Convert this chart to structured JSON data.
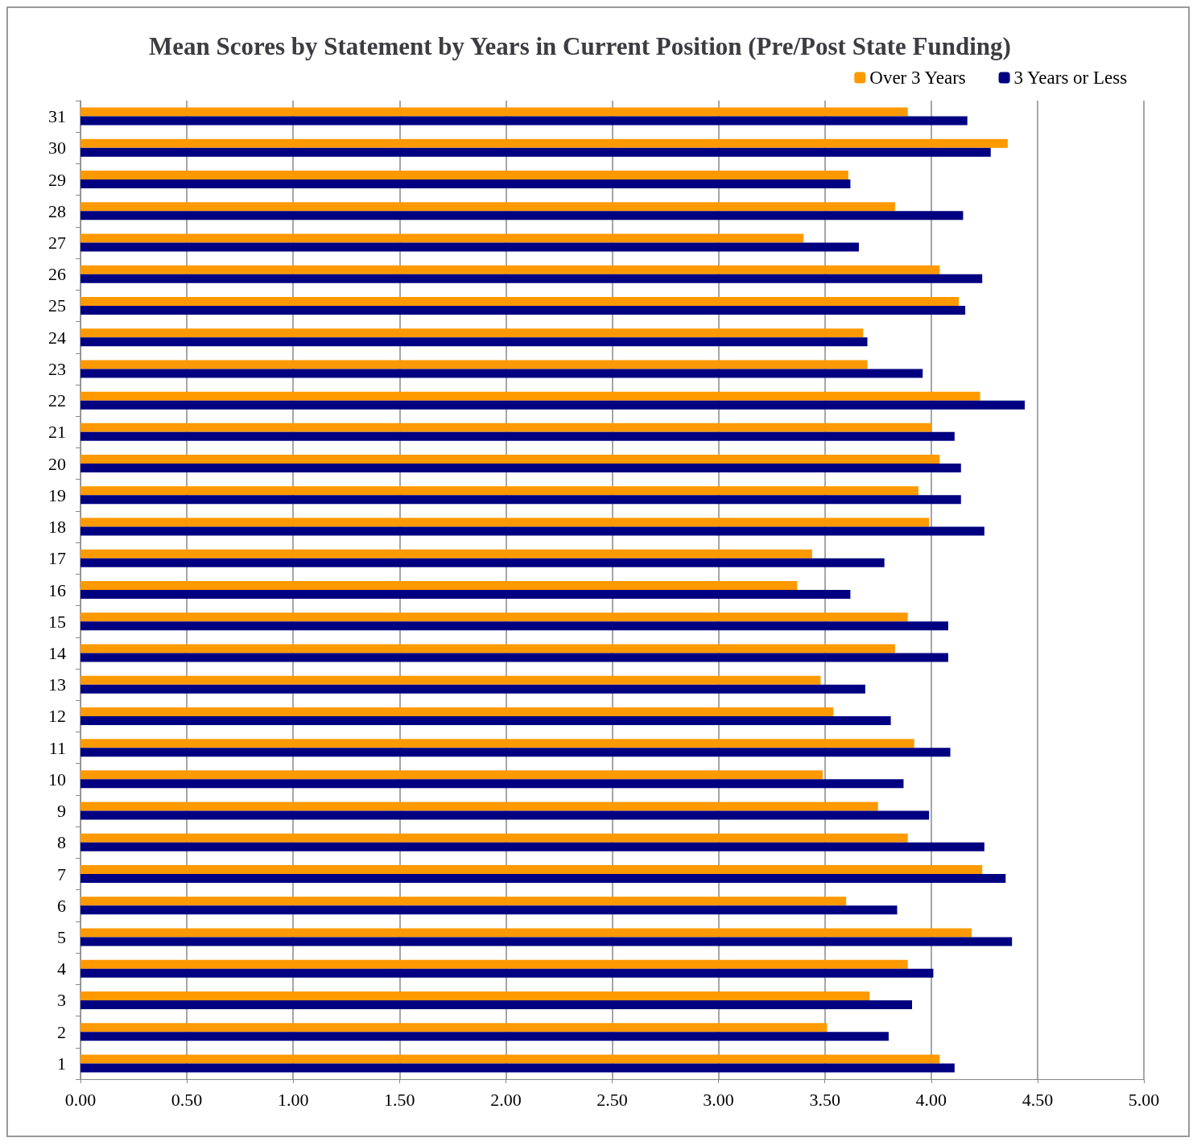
{
  "chart_data": {
    "type": "bar",
    "orientation": "horizontal",
    "title": "Mean Scores by Statement by Years in Current Position (Pre/Post State Funding)",
    "categories": [
      "31",
      "30",
      "29",
      "28",
      "27",
      "26",
      "25",
      "24",
      "23",
      "22",
      "21",
      "20",
      "19",
      "18",
      "17",
      "16",
      "15",
      "14",
      "13",
      "12",
      "11",
      "10",
      "9",
      "8",
      "7",
      "6",
      "5",
      "4",
      "3",
      "2",
      "1"
    ],
    "series": [
      {
        "name": "Over 3 Years",
        "color": "#ff9900",
        "values": [
          3.89,
          4.36,
          3.61,
          3.83,
          3.4,
          4.04,
          4.13,
          3.68,
          3.7,
          4.23,
          4.0,
          4.04,
          3.94,
          3.99,
          3.44,
          3.37,
          3.89,
          3.83,
          3.48,
          3.54,
          3.92,
          3.49,
          3.75,
          3.89,
          4.24,
          3.6,
          4.19,
          3.89,
          3.71,
          3.51,
          4.04
        ]
      },
      {
        "name": "3 Years or Less",
        "color": "#000080",
        "values": [
          4.17,
          4.28,
          3.62,
          4.15,
          3.66,
          4.24,
          4.16,
          3.7,
          3.96,
          4.44,
          4.11,
          4.14,
          4.14,
          4.25,
          3.78,
          3.62,
          4.08,
          4.08,
          3.69,
          3.81,
          4.09,
          3.87,
          3.99,
          4.25,
          4.35,
          3.84,
          4.38,
          4.01,
          3.91,
          3.8,
          4.11
        ]
      }
    ],
    "xlim": [
      0,
      5
    ],
    "xticks": [
      {
        "value": 0,
        "label": "0.00"
      },
      {
        "value": 0.5,
        "label": "0.50"
      },
      {
        "value": 1,
        "label": "1.00"
      },
      {
        "value": 1.5,
        "label": "1.50"
      },
      {
        "value": 2,
        "label": "2.00"
      },
      {
        "value": 2.5,
        "label": "2.50"
      },
      {
        "value": 3,
        "label": "3.00"
      },
      {
        "value": 3.5,
        "label": "3.50"
      },
      {
        "value": 4,
        "label": "4.00"
      },
      {
        "value": 4.5,
        "label": "4.50"
      },
      {
        "value": 5,
        "label": "5.00"
      }
    ],
    "grid": "x",
    "legend": "top right"
  }
}
